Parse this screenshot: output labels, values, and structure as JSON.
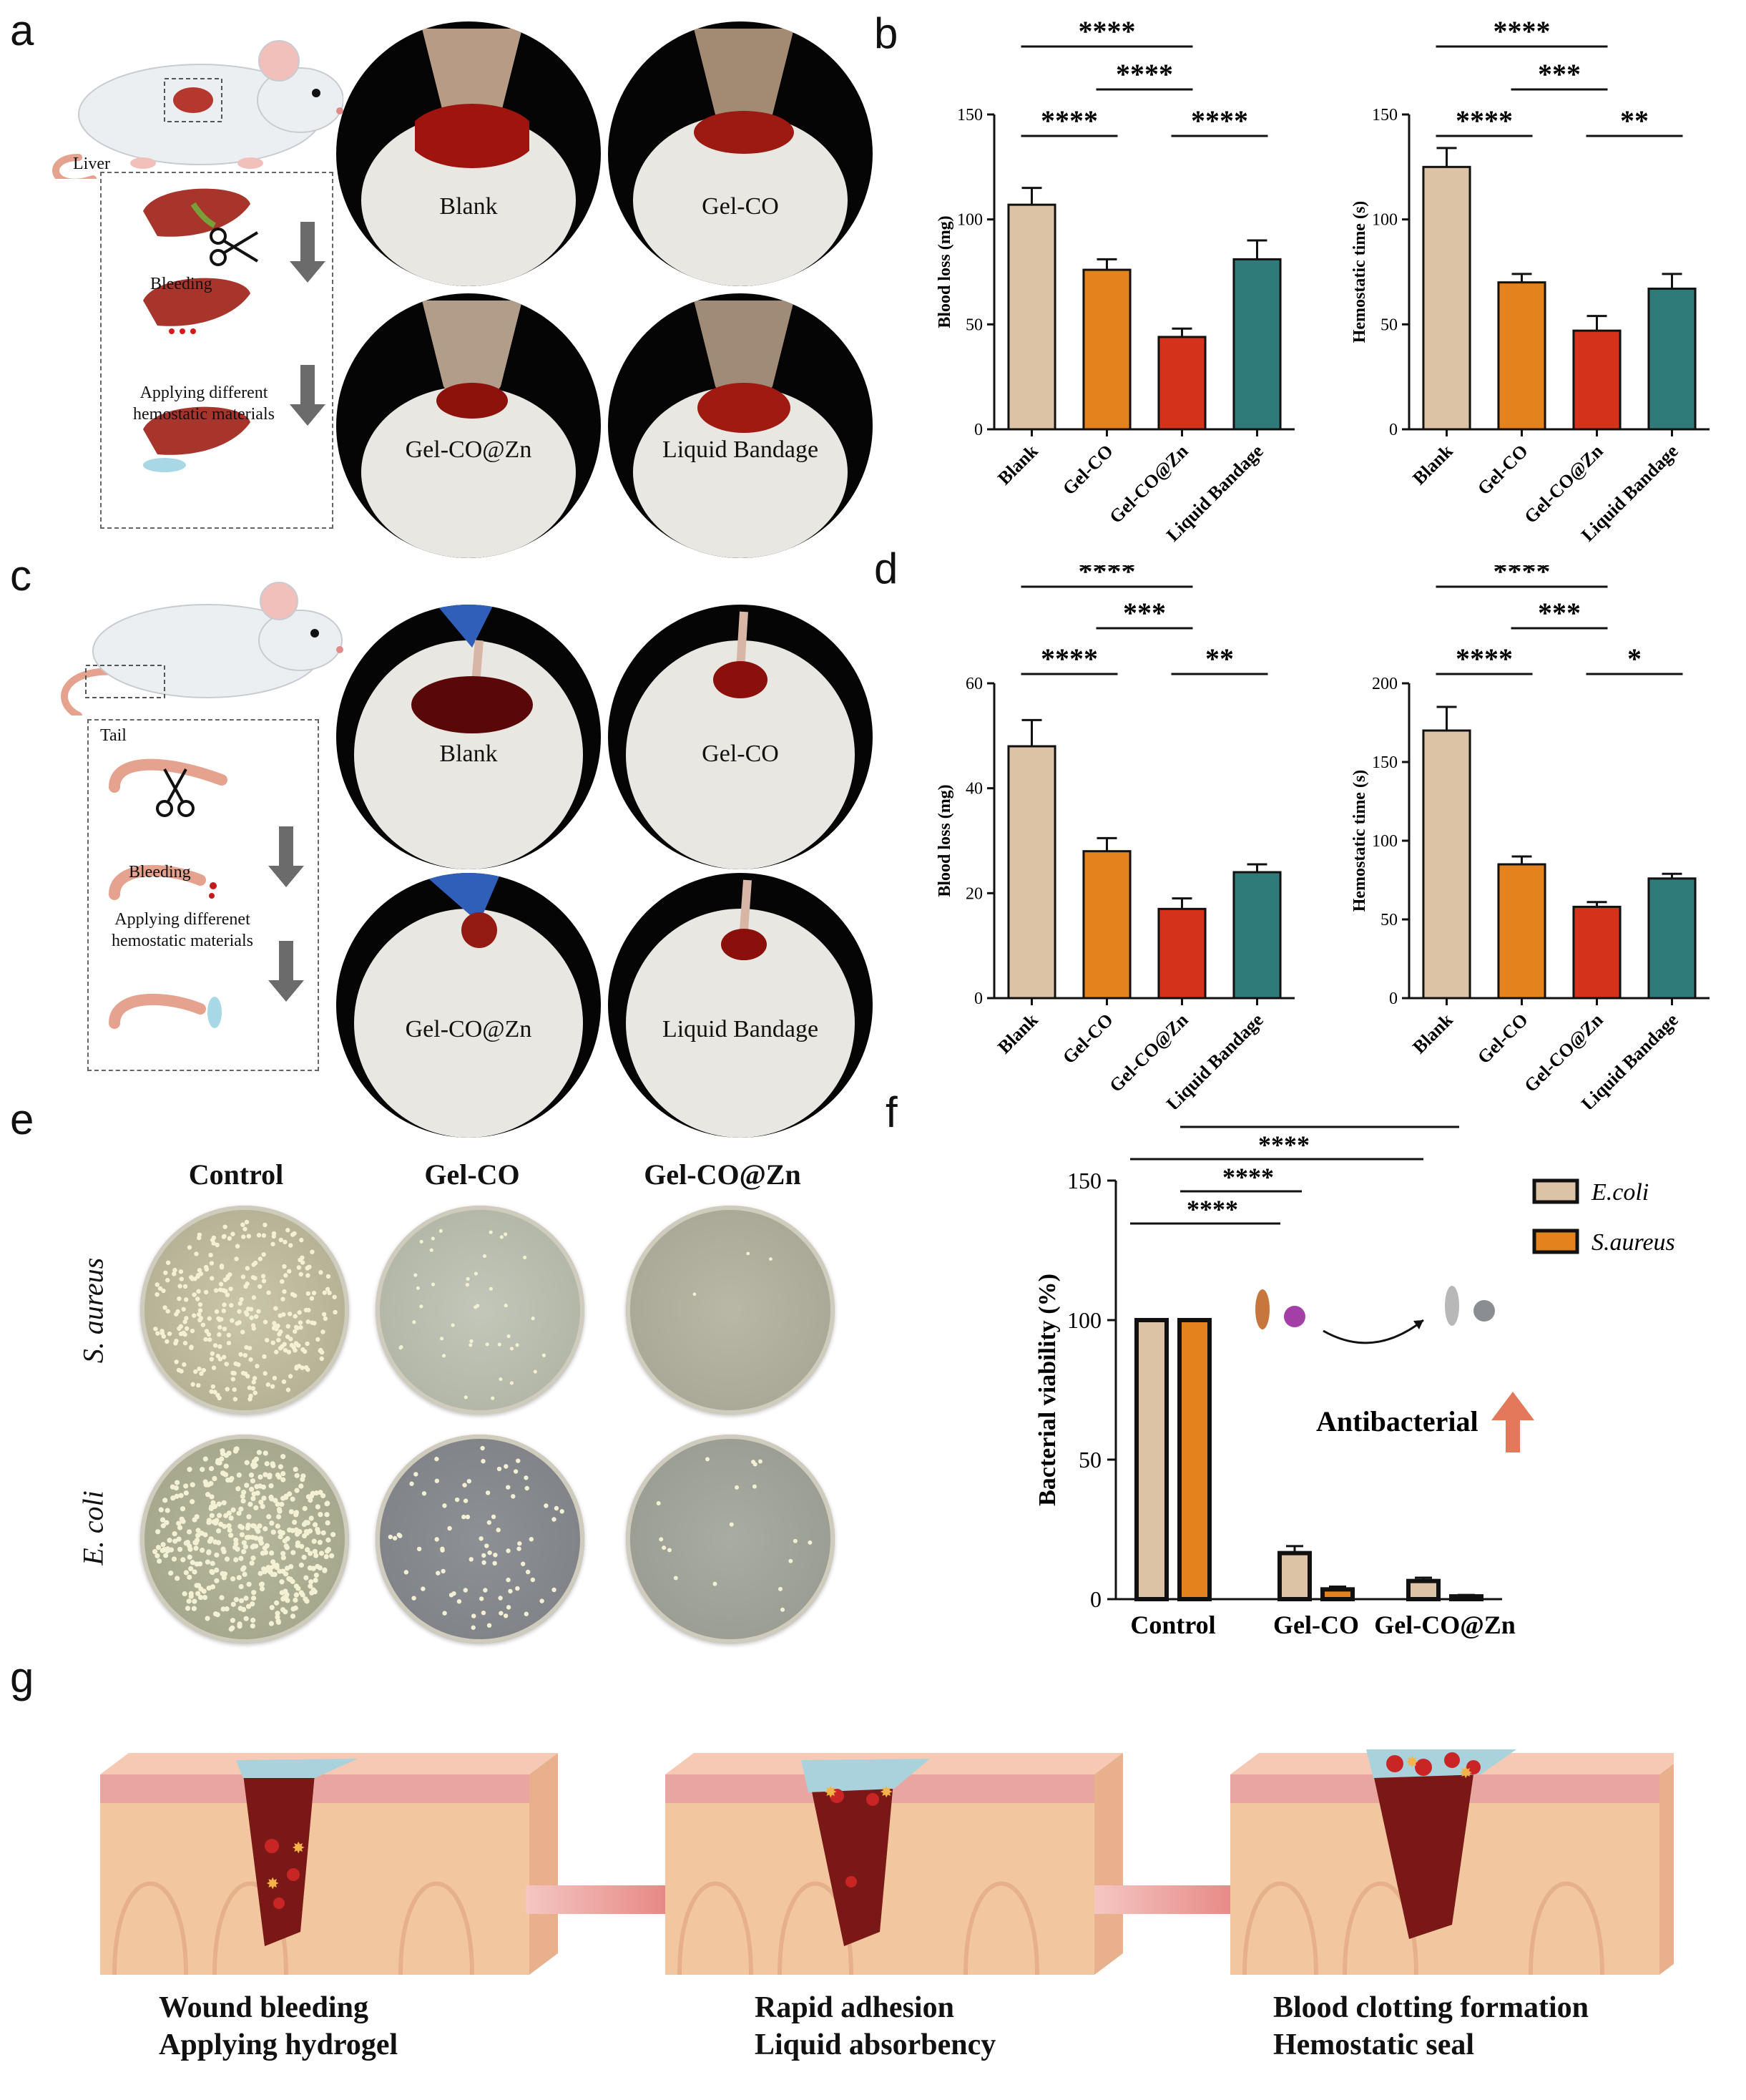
{
  "panels": {
    "a": {
      "letter": "a",
      "organ_label": "Liver",
      "steps": [
        "Bleeding",
        "Applying different",
        "hemostatic materials"
      ],
      "photo_labels": [
        "Blank",
        "Gel-CO",
        "Gel-CO@Zn",
        "Liquid Bandage"
      ]
    },
    "b": {
      "letter": "b"
    },
    "c": {
      "letter": "c",
      "organ_label": "Tail",
      "steps": [
        "Bleeding",
        "Applying differenet",
        "hemostatic materials"
      ],
      "photo_labels": [
        "Blank",
        "Gel-CO",
        "Gel-CO@Zn",
        "Liquid Bandage"
      ]
    },
    "d": {
      "letter": "d"
    },
    "e": {
      "letter": "e",
      "columns": [
        "Control",
        "Gel-CO",
        "Gel-CO@Zn"
      ],
      "rows": [
        "S. aureus",
        "E. coli"
      ]
    },
    "f": {
      "letter": "f",
      "annotation": "Antibacterial"
    },
    "g": {
      "letter": "g",
      "captions": [
        [
          "Wound bleeding",
          "Applying hydrogel"
        ],
        [
          "Rapid adhesion",
          "Liquid absorbency"
        ],
        [
          "Blood clotting formation",
          "Hemostatic seal"
        ]
      ]
    }
  },
  "colors": {
    "blank": "#dcc3a5",
    "gel_co": "#e4831e",
    "gel_co_zn": "#d4321b",
    "liquid_bandage": "#2e7b7a"
  },
  "chart_data": [
    {
      "id": "b-left",
      "type": "bar",
      "categories": [
        "Blank",
        "Gel-CO",
        "Gel-CO@Zn",
        "Liquid Bandage"
      ],
      "values": [
        107,
        76,
        44,
        81
      ],
      "errors": [
        8,
        5,
        4,
        9
      ],
      "ylabel": "Blood loss (mg)",
      "ylim": [
        0,
        150
      ],
      "yticks": [
        0,
        50,
        100,
        150
      ],
      "significance": [
        {
          "from": 0,
          "to": 1,
          "label": "****"
        },
        {
          "from": 2,
          "to": 3,
          "label": "****"
        },
        {
          "from": 1,
          "to": 2,
          "label": "****"
        },
        {
          "from": 0,
          "to": 2,
          "label": "****"
        }
      ]
    },
    {
      "id": "b-right",
      "type": "bar",
      "categories": [
        "Blank",
        "Gel-CO",
        "Gel-CO@Zn",
        "Liquid Bandage"
      ],
      "values": [
        125,
        70,
        47,
        67
      ],
      "errors": [
        9,
        4,
        7,
        7
      ],
      "ylabel": "Hemostatic time (s)",
      "ylim": [
        0,
        150
      ],
      "yticks": [
        0,
        50,
        100,
        150
      ],
      "significance": [
        {
          "from": 0,
          "to": 1,
          "label": "****"
        },
        {
          "from": 2,
          "to": 3,
          "label": "**"
        },
        {
          "from": 1,
          "to": 2,
          "label": "***"
        },
        {
          "from": 0,
          "to": 2,
          "label": "****"
        }
      ]
    },
    {
      "id": "d-left",
      "type": "bar",
      "categories": [
        "Blank",
        "Gel-CO",
        "Gel-CO@Zn",
        "Liquid Bandage"
      ],
      "values": [
        48,
        28,
        17,
        24
      ],
      "errors": [
        5,
        2.5,
        2,
        1.5
      ],
      "ylabel": "Blood loss (mg)",
      "ylim": [
        0,
        60
      ],
      "yticks": [
        0,
        20,
        40,
        60
      ],
      "significance": [
        {
          "from": 0,
          "to": 1,
          "label": "****"
        },
        {
          "from": 2,
          "to": 3,
          "label": "**"
        },
        {
          "from": 1,
          "to": 2,
          "label": "***"
        },
        {
          "from": 0,
          "to": 2,
          "label": "****"
        }
      ]
    },
    {
      "id": "d-right",
      "type": "bar",
      "categories": [
        "Blank",
        "Gel-CO",
        "Gel-CO@Zn",
        "Liquid Bandage"
      ],
      "values": [
        170,
        85,
        58,
        76
      ],
      "errors": [
        15,
        5,
        3,
        3
      ],
      "ylabel": "Hemostatic time (s)",
      "ylim": [
        0,
        200
      ],
      "yticks": [
        0,
        50,
        100,
        150,
        200
      ],
      "significance": [
        {
          "from": 0,
          "to": 1,
          "label": "****"
        },
        {
          "from": 2,
          "to": 3,
          "label": "*"
        },
        {
          "from": 1,
          "to": 2,
          "label": "***"
        },
        {
          "from": 0,
          "to": 2,
          "label": "****"
        }
      ]
    },
    {
      "id": "f",
      "type": "bar",
      "categories": [
        "Control",
        "Gel-CO",
        "Gel-CO@Zn"
      ],
      "series": [
        {
          "name": "E.coli",
          "values": [
            100,
            16.5,
            6.5
          ],
          "errors": [
            0,
            2.5,
            1.2
          ]
        },
        {
          "name": "S.aureus",
          "values": [
            100,
            3.5,
            1
          ],
          "errors": [
            0,
            1,
            0.5
          ]
        }
      ],
      "ylabel": "Bacterial viability (%)",
      "ylim": [
        0,
        150
      ],
      "yticks": [
        0,
        50,
        100,
        150
      ],
      "legend": "top-right",
      "significance": [
        {
          "label": "****"
        },
        {
          "label": "****"
        },
        {
          "label": "****"
        },
        {
          "label": "****"
        }
      ]
    }
  ]
}
